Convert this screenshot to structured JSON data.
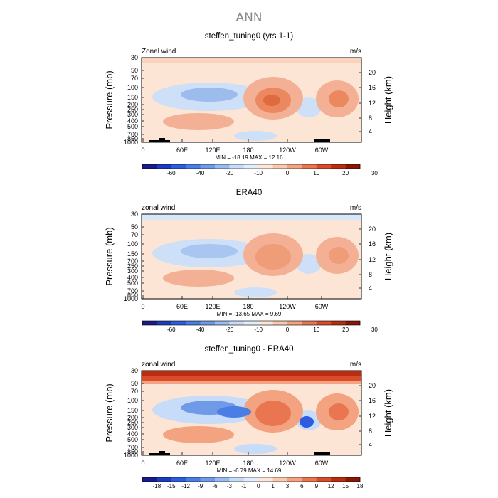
{
  "page_title": "ANN",
  "chart_data": [
    {
      "type": "heatmap",
      "title": "steffen_tuning0 (yrs 1-1)",
      "field_label": "Zonal wind",
      "units": "m/s",
      "ylabel": "Pressure (mb)",
      "y2label": "Height (km)",
      "xticks": [
        "0",
        "60E",
        "120E",
        "180",
        "120W",
        "60W"
      ],
      "yticks": [
        "30",
        "50",
        "70",
        "100",
        "150",
        "200",
        "250",
        "300",
        "400",
        "500",
        "700",
        "850",
        "1000"
      ],
      "y2ticks": [
        "20",
        "16",
        "12",
        "8",
        "4"
      ],
      "stats": "MIN = -18.19   MAX =  12.16",
      "min": -18.19,
      "max": 12.16,
      "colorbar": {
        "labels": [
          "-60",
          "-40",
          "-20",
          "-10",
          "0",
          "10",
          "20",
          "30"
        ],
        "colors": [
          "#1a1a8c",
          "#1c3cbf",
          "#2e5ce0",
          "#4a7de6",
          "#6f9ae8",
          "#9abbf0",
          "#c6dcf8",
          "#e3eefc",
          "#fde6d8",
          "#f9c9ae",
          "#f3a37f",
          "#e97650",
          "#d94c2a",
          "#bb2d13",
          "#8c1606"
        ]
      },
      "features": {
        "background": "#fde5d5",
        "top_band": "#fbd3bd",
        "negative_band": "#cde0f7",
        "negative_core": "#9cbcee",
        "positive_jets": [
          "#f4b095",
          "#ec8860",
          "#e06a40"
        ]
      }
    },
    {
      "type": "heatmap",
      "title": "ERA40",
      "field_label": "zonal wind",
      "units": "m/s",
      "ylabel": "Pressure (mb)",
      "y2label": "Height (km)",
      "xticks": [
        "0",
        "60E",
        "120E",
        "180",
        "120W",
        "60W"
      ],
      "yticks": [
        "30",
        "50",
        "70",
        "100",
        "150",
        "200",
        "250",
        "300",
        "400",
        "500",
        "700",
        "850",
        "1000"
      ],
      "y2ticks": [
        "20",
        "16",
        "12",
        "8",
        "4"
      ],
      "stats": "MIN = -13.65   MAX =   9.69",
      "min": -13.65,
      "max": 9.69,
      "colorbar": {
        "labels": [
          "-60",
          "-40",
          "-20",
          "-10",
          "0",
          "10",
          "20",
          "30"
        ],
        "colors": [
          "#1a1a8c",
          "#1c3cbf",
          "#2e5ce0",
          "#4a7de6",
          "#6f9ae8",
          "#9abbf0",
          "#c6dcf8",
          "#e3eefc",
          "#fde6d8",
          "#f9c9ae",
          "#f3a37f",
          "#e97650",
          "#d94c2a",
          "#bb2d13",
          "#8c1606"
        ]
      },
      "features": {
        "background": "#fde5d5",
        "top_band": "#d8e8fa",
        "negative_band": "#cde0f7",
        "negative_core": "#a9c6f0",
        "positive_jets": [
          "#f4b095",
          "#ef9c78"
        ]
      }
    },
    {
      "type": "heatmap",
      "title": "steffen_tuning0 - ERA40",
      "field_label": "zonal wind",
      "units": "m/s",
      "ylabel": "Pressure (mb)",
      "y2label": "Height (km)",
      "xticks": [
        "0",
        "60E",
        "120E",
        "180",
        "120W",
        "60W"
      ],
      "yticks": [
        "30",
        "50",
        "70",
        "100",
        "150",
        "200",
        "250",
        "300",
        "400",
        "500",
        "700",
        "850",
        "1000"
      ],
      "y2ticks": [
        "20",
        "16",
        "12",
        "8",
        "4"
      ],
      "stats": "MIN =  -6.79   MAX =  14.69",
      "min": -6.79,
      "max": 14.69,
      "colorbar": {
        "labels": [
          "-18",
          "-15",
          "-12",
          "-9",
          "-6",
          "-3",
          "-1",
          "0",
          "1",
          "3",
          "6",
          "9",
          "12",
          "15",
          "18"
        ],
        "colors": [
          "#1a1a8c",
          "#1c3cbf",
          "#2e5ce0",
          "#4a7de6",
          "#6f9ae8",
          "#9abbf0",
          "#c6dcf8",
          "#e3eefc",
          "#fde6d8",
          "#f9c9ae",
          "#f3a37f",
          "#e97650",
          "#d94c2a",
          "#bb2d13",
          "#8c1606"
        ]
      },
      "features": {
        "background": "#fde5d5",
        "top_band": "#d94c2a",
        "negative_band": "#c6dcf8",
        "negative_core": "#6f9ae8",
        "positive_jets": [
          "#f3a37f",
          "#e97650"
        ]
      }
    }
  ]
}
